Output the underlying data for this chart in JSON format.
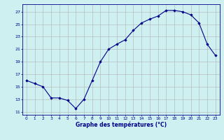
{
  "x": [
    0,
    1,
    2,
    3,
    4,
    5,
    6,
    7,
    8,
    9,
    10,
    11,
    12,
    13,
    14,
    15,
    16,
    17,
    18,
    19,
    20,
    21,
    22,
    23
  ],
  "y": [
    16.0,
    15.5,
    15.0,
    13.2,
    13.2,
    12.8,
    11.5,
    13.0,
    16.0,
    19.0,
    21.0,
    21.8,
    22.5,
    24.0,
    25.2,
    25.8,
    26.3,
    27.2,
    27.2,
    27.0,
    26.5,
    25.2,
    21.8,
    20.0
  ],
  "bg_color": "#cff0f0",
  "line_color": "#00008b",
  "marker_color": "#00008b",
  "grid_color": "#b0b0b0",
  "xlabel": "Graphe des températures (°C)",
  "xlabel_color": "#00008b",
  "tick_color": "#00008b",
  "ylim": [
    10.5,
    28.2
  ],
  "xlim": [
    -0.5,
    23.5
  ],
  "yticks": [
    11,
    13,
    15,
    17,
    19,
    21,
    23,
    25,
    27
  ],
  "xticks": [
    0,
    1,
    2,
    3,
    4,
    5,
    6,
    7,
    8,
    9,
    10,
    11,
    12,
    13,
    14,
    15,
    16,
    17,
    18,
    19,
    20,
    21,
    22,
    23
  ]
}
